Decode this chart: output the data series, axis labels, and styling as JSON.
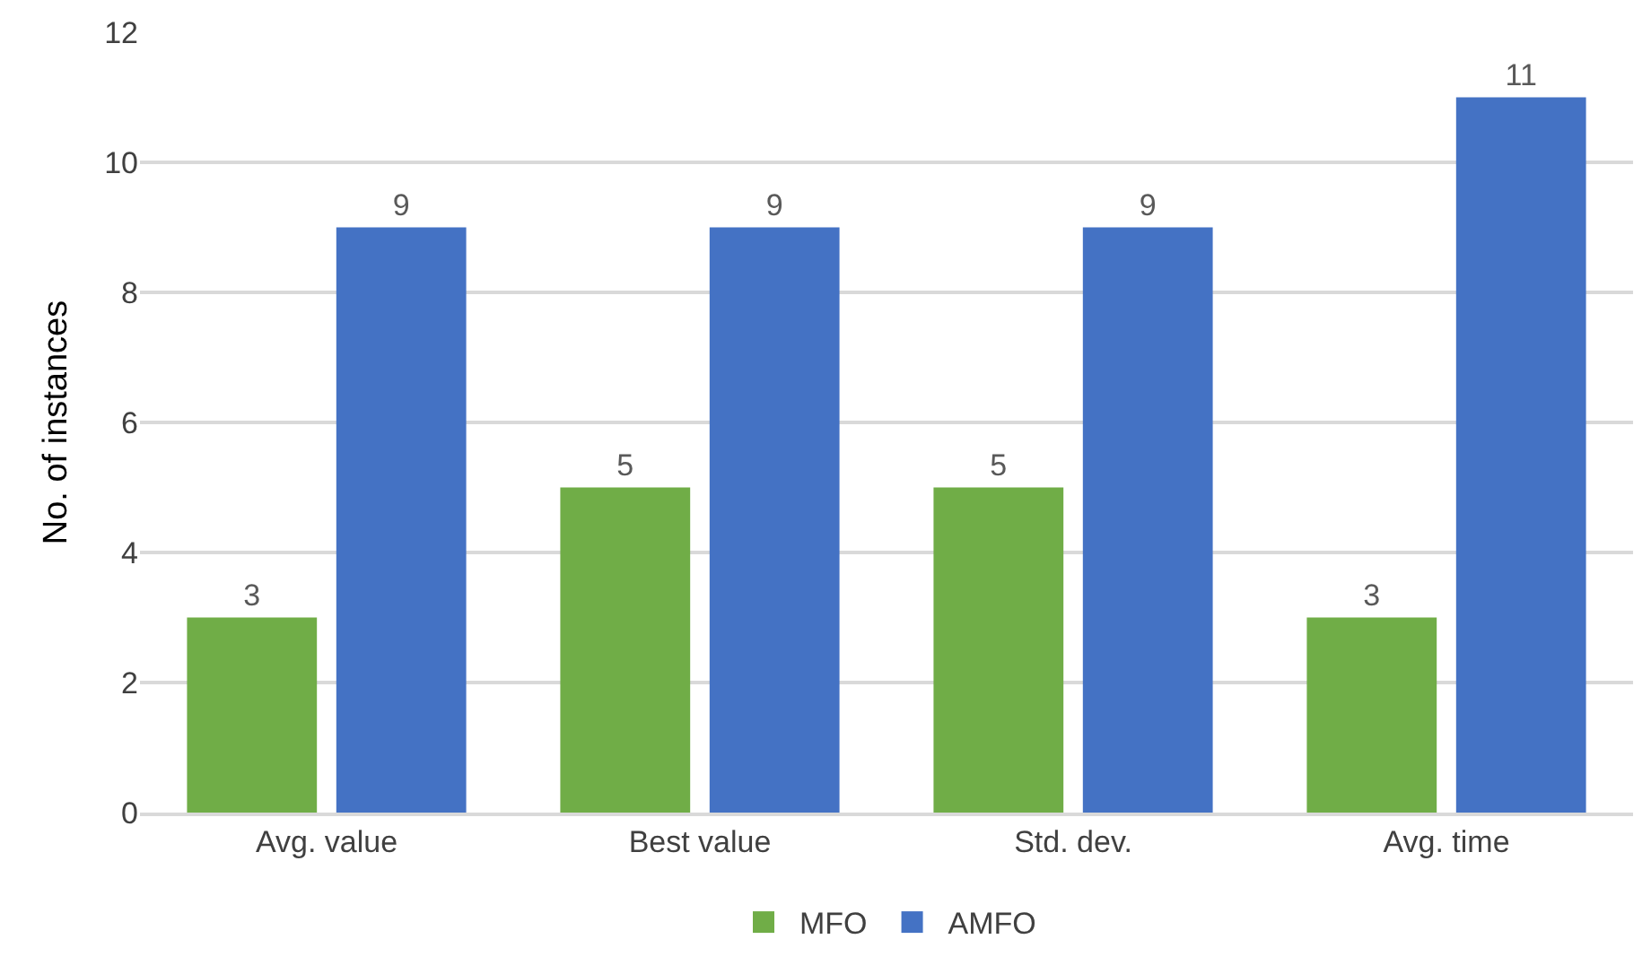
{
  "chart_data": {
    "type": "bar",
    "ylabel": "No. of instances",
    "categories": [
      "Avg. value",
      "Best value",
      "Std. dev.",
      "Avg. time"
    ],
    "series": [
      {
        "name": "MFO",
        "color": "#70ad47",
        "values": [
          3,
          5,
          5,
          3
        ]
      },
      {
        "name": "AMFO",
        "color": "#4472c4",
        "values": [
          9,
          9,
          9,
          11
        ]
      }
    ],
    "ylim": [
      0,
      12
    ],
    "yticks": [
      0,
      2,
      4,
      6,
      8,
      10,
      12
    ],
    "grid": "y",
    "legend": "bottom",
    "data_labels": true
  }
}
